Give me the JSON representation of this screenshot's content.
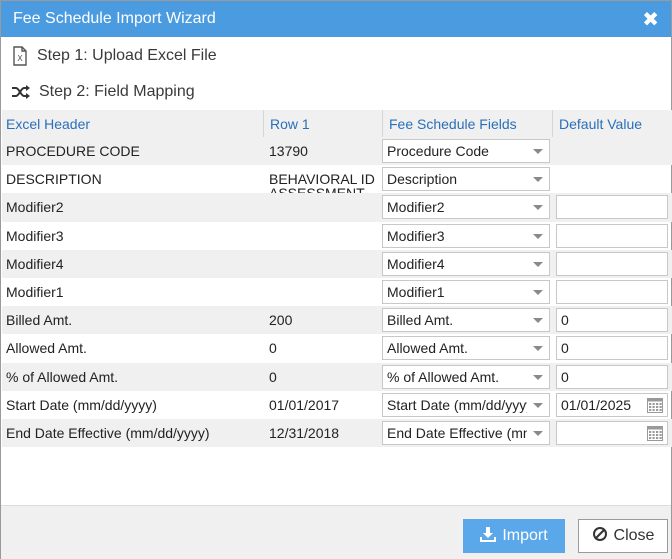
{
  "dialog": {
    "title": "Fee Schedule Import Wizard",
    "close_icon": "close-x-icon"
  },
  "steps": [
    {
      "label": "Step 1: Upload Excel File",
      "icon": "excel-file-icon"
    },
    {
      "label": "Step 2: Field Mapping",
      "icon": "shuffle-icon"
    }
  ],
  "table": {
    "headers": [
      "Excel Header",
      "Row 1",
      "Fee Schedule Fields",
      "Default Value"
    ],
    "rows": [
      {
        "excel_header": "PROCEDURE CODE",
        "row1": "13790",
        "field": "Procedure Code",
        "default": null
      },
      {
        "excel_header": "DESCRIPTION",
        "row1": "BEHAVIORAL ID ASSESSMENT",
        "field": "Description",
        "default": null
      },
      {
        "excel_header": "Modifier2",
        "row1": "",
        "field": "Modifier2",
        "default": ""
      },
      {
        "excel_header": "Modifier3",
        "row1": "",
        "field": "Modifier3",
        "default": ""
      },
      {
        "excel_header": "Modifier4",
        "row1": "",
        "field": "Modifier4",
        "default": ""
      },
      {
        "excel_header": "Modifier1",
        "row1": "",
        "field": "Modifier1",
        "default": ""
      },
      {
        "excel_header": "Billed Amt.",
        "row1": "200",
        "field": "Billed Amt.",
        "default": "0"
      },
      {
        "excel_header": "Allowed Amt.",
        "row1": "0",
        "field": "Allowed Amt.",
        "default": "0"
      },
      {
        "excel_header": "% of Allowed Amt.",
        "row1": "0",
        "field": "% of Allowed Amt.",
        "default": "0"
      },
      {
        "excel_header": "Start Date (mm/dd/yyyy)",
        "row1": "01/01/2017",
        "field": "Start Date (mm/dd/yyyy)",
        "default": "01/01/2025",
        "calendar": true
      },
      {
        "excel_header": "End Date Effective (mm/dd/yyyy)",
        "row1": "12/31/2018",
        "field": "End Date Effective (mm/dd/yyyy)",
        "default": "",
        "calendar": true
      }
    ]
  },
  "footer": {
    "import_label": "Import",
    "import_icon": "download-icon",
    "close_label": "Close",
    "close_icon": "ban-icon"
  },
  "colors": {
    "titlebar": "#4a9be0",
    "header_text": "#2a6fb8",
    "import_button": "#5aa8ea"
  }
}
